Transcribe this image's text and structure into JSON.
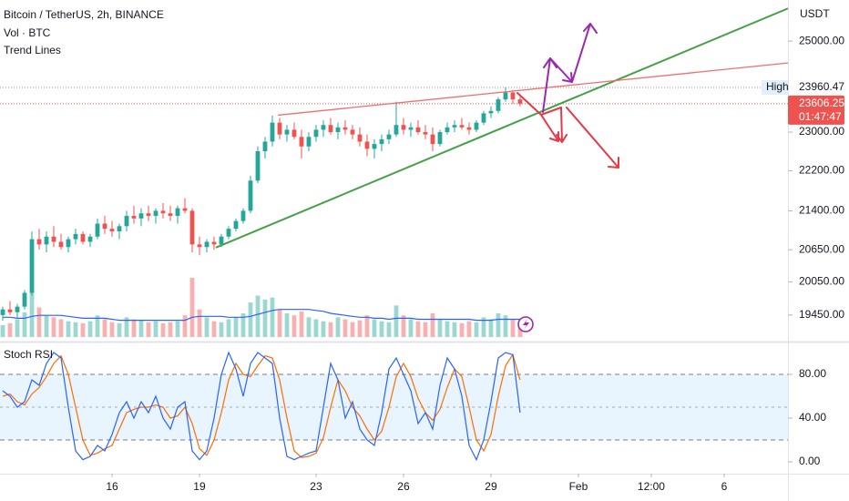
{
  "chart_data": {
    "type": "candlestick",
    "title": "Bitcoin / TetherUS, 2h, BINANCE",
    "indicators": [
      "Vol · BTC",
      "Trend Lines"
    ],
    "currency": "USDT",
    "log": true,
    "up_color": "#26a69a",
    "down_color": "#ef5350",
    "xlim": [
      12.156,
      39.19
    ],
    "xticks": [
      16,
      19,
      23,
      26,
      29,
      {
        "value": 32,
        "label": "Feb"
      },
      {
        "value": 34.5,
        "label": "12:00"
      },
      {
        "value": 37,
        "label": "6"
      }
    ],
    "ylim": [
      19030,
      25960
    ],
    "yticks": [
      {
        "value": 25000,
        "label": "25000.00"
      },
      {
        "value": 23000,
        "label": "23000.00"
      },
      {
        "value": 22200,
        "label": "22200.00"
      },
      {
        "value": 21400,
        "label": "21400.00"
      },
      {
        "value": 20650,
        "label": "20650.00"
      },
      {
        "value": 20050,
        "label": "20050.00"
      },
      {
        "value": 19450,
        "label": "19450.00"
      }
    ],
    "high": {
      "label": "High",
      "value": 23960.47
    },
    "last": {
      "value": 23606.25,
      "countdown": "01:47:47"
    },
    "x": [
      12.25,
      12.5,
      12.75,
      13,
      13.25,
      13.5,
      13.75,
      14,
      14.25,
      14.5,
      14.75,
      15,
      15.25,
      15.5,
      15.75,
      16,
      16.25,
      16.5,
      16.75,
      17,
      17.25,
      17.5,
      17.75,
      18,
      18.25,
      18.5,
      18.75,
      19,
      19.25,
      19.5,
      19.75,
      20,
      20.25,
      20.5,
      20.75,
      21,
      21.25,
      21.5,
      21.75,
      22,
      22.25,
      22.5,
      22.75,
      23,
      23.25,
      23.5,
      23.75,
      24,
      24.25,
      24.5,
      24.75,
      25,
      25.25,
      25.5,
      25.75,
      26,
      26.25,
      26.5,
      26.75,
      27,
      27.25,
      27.5,
      27.75,
      28,
      28.25,
      28.5,
      28.75,
      29,
      29.25,
      29.5,
      29.75,
      30
    ],
    "open": [
      19450,
      19550,
      19500,
      19600,
      19850,
      20850,
      20750,
      20900,
      20800,
      20700,
      20850,
      20950,
      20800,
      20900,
      21150,
      21050,
      21000,
      21100,
      21300,
      21250,
      21350,
      21300,
      21400,
      21350,
      21300,
      21450,
      21400,
      20750,
      20700,
      20800,
      20750,
      20900,
      21050,
      21200,
      21400,
      22000,
      22600,
      22800,
      23200,
      22950,
      23050,
      22900,
      22700,
      22900,
      23050,
      23150,
      23000,
      23100,
      23050,
      22950,
      22800,
      22650,
      22750,
      22850,
      22950,
      23150,
      23050,
      23100,
      23000,
      22950,
      22750,
      23000,
      23100,
      23150,
      23100,
      23050,
      23200,
      23400,
      23450,
      23700,
      23850,
      23700
    ],
    "high_values": [
      19600,
      19700,
      19650,
      19900,
      21000,
      21050,
      21000,
      21100,
      20950,
      20900,
      21050,
      21000,
      20950,
      21250,
      21300,
      21200,
      21150,
      21400,
      21500,
      21450,
      21500,
      21450,
      21550,
      21500,
      21500,
      21650,
      21450,
      20900,
      20850,
      20900,
      20950,
      21100,
      21250,
      21450,
      22100,
      22700,
      22900,
      23350,
      23300,
      23150,
      23200,
      23050,
      23000,
      23150,
      23250,
      23300,
      23200,
      23250,
      23150,
      23100,
      22950,
      22850,
      22950,
      23050,
      23650,
      23300,
      23200,
      23250,
      23150,
      23100,
      23050,
      23200,
      23250,
      23300,
      23200,
      23250,
      23450,
      23550,
      23750,
      23960.47,
      23900,
      23750
    ],
    "low": [
      19350,
      19450,
      19400,
      19550,
      19800,
      20650,
      20600,
      20700,
      20650,
      20600,
      20750,
      20750,
      20700,
      20850,
      20950,
      20900,
      20850,
      21000,
      21150,
      21100,
      21200,
      21150,
      21250,
      21200,
      21150,
      21350,
      20600,
      20550,
      20600,
      20650,
      20700,
      20850,
      21000,
      21150,
      21350,
      21950,
      22450,
      22700,
      22850,
      22800,
      22850,
      22450,
      22600,
      22800,
      22900,
      22950,
      22850,
      22950,
      22850,
      22700,
      22500,
      22450,
      22600,
      22750,
      22900,
      22950,
      22900,
      22950,
      22850,
      22600,
      22700,
      22950,
      23000,
      23050,
      22950,
      23000,
      23150,
      23300,
      23400,
      23650,
      23600,
      23550
    ],
    "close": [
      19550,
      19500,
      19600,
      19850,
      20850,
      20750,
      20900,
      20800,
      20700,
      20850,
      20950,
      20800,
      20900,
      21150,
      21050,
      21000,
      21100,
      21300,
      21250,
      21350,
      21300,
      21400,
      21350,
      21300,
      21450,
      21400,
      20750,
      20700,
      20800,
      20750,
      20900,
      21050,
      21200,
      21400,
      22000,
      22600,
      22800,
      23200,
      22950,
      23050,
      22900,
      22700,
      22900,
      23050,
      23150,
      23000,
      23100,
      23050,
      22950,
      22800,
      22650,
      22750,
      22850,
      22950,
      23150,
      23050,
      23100,
      23000,
      22950,
      22750,
      23000,
      23100,
      23150,
      23100,
      23050,
      23200,
      23400,
      23450,
      23700,
      23850,
      23700,
      23606.25
    ],
    "volume": [
      1200,
      1400,
      1800,
      2500,
      4500,
      3000,
      2200,
      2000,
      1800,
      1600,
      1500,
      1400,
      1600,
      2200,
      1800,
      1500,
      1400,
      2000,
      1800,
      1700,
      1500,
      1600,
      1400,
      1500,
      1600,
      2200,
      6000,
      2800,
      2000,
      1600,
      1500,
      1800,
      2000,
      2400,
      3500,
      4200,
      3800,
      4000,
      2800,
      2400,
      2200,
      2600,
      2000,
      1800,
      1600,
      1500,
      2000,
      1800,
      1500,
      1700,
      2200,
      1800,
      1600,
      1500,
      3200,
      2200,
      1800,
      1600,
      1500,
      2400,
      1800,
      1600,
      1500,
      1400,
      1600,
      1500,
      2000,
      1800,
      2400,
      2200,
      1800,
      1400
    ],
    "volume_ma": [
      2000,
      2000,
      1900,
      1900,
      2100,
      2200,
      2200,
      2200,
      2200,
      2100,
      2000,
      1900,
      1900,
      1900,
      1900,
      1800,
      1700,
      1700,
      1700,
      1700,
      1700,
      1700,
      1700,
      1700,
      1700,
      1700,
      2000,
      2100,
      2100,
      2100,
      2100,
      2000,
      2000,
      2000,
      2100,
      2300,
      2500,
      2700,
      2800,
      2800,
      2800,
      2800,
      2800,
      2700,
      2600,
      2400,
      2300,
      2200,
      2100,
      2000,
      2000,
      1900,
      1900,
      1800,
      1900,
      1900,
      1900,
      1800,
      1800,
      1800,
      1800,
      1800,
      1800,
      1800,
      1800,
      1700,
      1700,
      1700,
      1800,
      1800,
      1800,
      1800
    ],
    "volume_ma_color": "#2962ff",
    "trend_lines": [
      {
        "color": "#43a047",
        "points": [
          [
            19.56,
            20690
          ],
          [
            39.19,
            25760
          ]
        ]
      },
      {
        "color": "#f26d6d",
        "points": [
          [
            21.69,
            23360
          ],
          [
            39.19,
            24505
          ]
        ]
      }
    ],
    "stoch_rsi": {
      "title": "Stoch RSI",
      "ylim": [
        -10.8,
        107.5
      ],
      "yticks": [
        {
          "value": 0,
          "label": "0.00"
        },
        {
          "value": 40,
          "label": "40.00"
        },
        {
          "value": 80,
          "label": "80.00"
        }
      ],
      "levels": [
        20,
        50,
        80
      ],
      "k_color": "#2962ff",
      "d_color": "#ff6d00",
      "k": [
        65,
        60,
        50,
        55,
        75,
        70,
        90,
        100,
        95,
        50,
        10,
        2,
        5,
        15,
        10,
        25,
        45,
        55,
        40,
        55,
        45,
        60,
        40,
        30,
        50,
        55,
        10,
        2,
        10,
        40,
        80,
        100,
        85,
        60,
        90,
        100,
        95,
        90,
        40,
        5,
        2,
        5,
        8,
        10,
        50,
        90,
        75,
        40,
        55,
        30,
        20,
        15,
        45,
        85,
        95,
        80,
        65,
        35,
        45,
        30,
        70,
        95,
        85,
        60,
        15,
        2,
        20,
        55,
        95,
        100,
        98,
        45
      ],
      "d": [
        60,
        62,
        55,
        52,
        62,
        68,
        78,
        90,
        97,
        80,
        50,
        20,
        6,
        8,
        12,
        15,
        30,
        45,
        48,
        50,
        50,
        52,
        50,
        40,
        42,
        50,
        35,
        12,
        6,
        20,
        45,
        75,
        90,
        80,
        78,
        88,
        97,
        95,
        75,
        40,
        10,
        4,
        5,
        8,
        22,
        50,
        75,
        65,
        50,
        42,
        30,
        20,
        28,
        50,
        78,
        90,
        78,
        58,
        45,
        38,
        48,
        68,
        85,
        78,
        50,
        20,
        10,
        25,
        60,
        88,
        98,
        75
      ]
    }
  }
}
